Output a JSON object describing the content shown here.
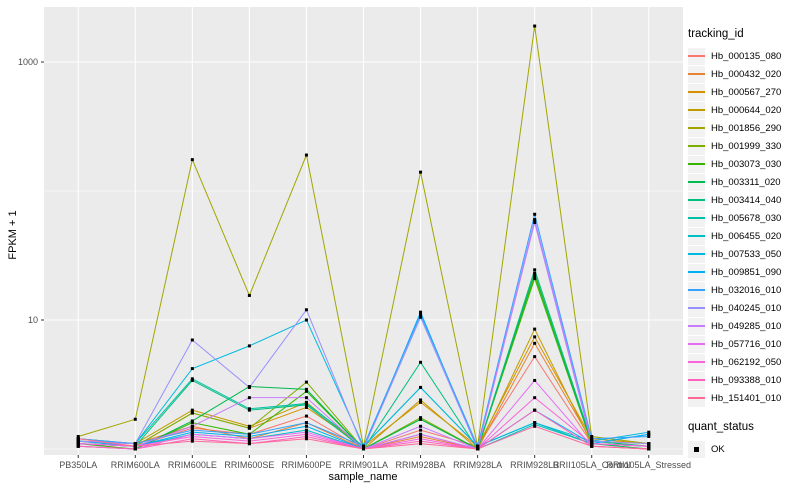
{
  "chart_data": {
    "type": "line",
    "title": "",
    "xlabel": "sample_name",
    "ylabel": "FPKM + 1",
    "yscale": "log10",
    "ylim": [
      0.9,
      2670
    ],
    "grid": true,
    "panel_bg": "#EBEBEB",
    "grid_color": "#FFFFFF",
    "tick_label_color": "#4D4D4D",
    "point_color": "#000000",
    "yticks": [
      {
        "value": 10,
        "label": "10"
      },
      {
        "value": 1000,
        "label": "1000"
      }
    ],
    "minor_y_gridlines": [
      1,
      100
    ],
    "categories": [
      "PB350LA",
      "RRIM600LA",
      "RRIM600LE",
      "RRIM600SE",
      "RRIM600PE",
      "RRIM901LA",
      "RRIM928BA",
      "RRIM928LA",
      "RRIM928LB",
      "RRII105LA_Control",
      "RRII105LA_Stressed"
    ],
    "legend": {
      "tracking_title": "tracking_id",
      "quant_title": "quant_status",
      "quant_items": [
        {
          "label": "OK",
          "marker": "black-square"
        }
      ],
      "position": "right"
    },
    "series": [
      {
        "name": "Hb_000135_080",
        "color": "#F8766D",
        "values": [
          1.15,
          1.05,
          1.45,
          1.3,
          1.8,
          1.0,
          1.4,
          1.05,
          5.2,
          1.1,
          1.05
        ]
      },
      {
        "name": "Hb_000432_020",
        "color": "#EA8331",
        "values": [
          1.2,
          1.1,
          1.5,
          1.2,
          1.6,
          1.0,
          1.25,
          1.0,
          6.6,
          1.15,
          1.1
        ]
      },
      {
        "name": "Hb_000567_270",
        "color": "#D89000",
        "values": [
          1.1,
          1.05,
          1.9,
          1.45,
          2.1,
          1.05,
          2.3,
          1.05,
          7.4,
          1.2,
          1.1
        ]
      },
      {
        "name": "Hb_000644_020",
        "color": "#C09B00",
        "values": [
          1.15,
          1.1,
          2.0,
          1.5,
          2.3,
          1.0,
          2.4,
          1.0,
          8.5,
          1.1,
          1.05
        ]
      },
      {
        "name": "Hb_001856_290",
        "color": "#A3A500",
        "values": [
          1.25,
          1.7,
          175,
          15.5,
          190,
          1.05,
          140,
          1.05,
          1900,
          1.25,
          1.1
        ]
      },
      {
        "name": "Hb_001999_330",
        "color": "#7CAE00",
        "values": [
          1.1,
          1.05,
          1.9,
          1.45,
          3.3,
          1.0,
          1.75,
          1.0,
          22,
          1.15,
          1.05
        ]
      },
      {
        "name": "Hb_003073_030",
        "color": "#39B600",
        "values": [
          1.1,
          1.0,
          1.6,
          1.3,
          2.8,
          1.0,
          1.7,
          1.0,
          21,
          1.1,
          1.05
        ]
      },
      {
        "name": "Hb_003311_020",
        "color": "#00BB4E",
        "values": [
          1.05,
          1.0,
          1.65,
          3.05,
          2.9,
          1.0,
          1.7,
          1.0,
          23,
          1.1,
          1.0
        ]
      },
      {
        "name": "Hb_003414_040",
        "color": "#00BF7D",
        "values": [
          1.1,
          1.05,
          3.4,
          2.0,
          2.2,
          1.0,
          4.7,
          1.0,
          24.5,
          1.15,
          1.05
        ]
      },
      {
        "name": "Hb_005678_030",
        "color": "#00C1A3",
        "values": [
          1.15,
          1.1,
          3.5,
          2.05,
          2.25,
          1.05,
          3.0,
          1.05,
          1.6,
          1.1,
          1.05
        ]
      },
      {
        "name": "Hb_006455_020",
        "color": "#00BFC4",
        "values": [
          1.1,
          1.05,
          1.3,
          1.2,
          1.4,
          1.0,
          1.3,
          1.0,
          1.55,
          1.1,
          1.3
        ]
      },
      {
        "name": "Hb_007533_050",
        "color": "#00BAE0",
        "values": [
          1.2,
          1.1,
          4.2,
          6.3,
          10.0,
          1.05,
          3.0,
          1.05,
          1.6,
          1.15,
          1.35
        ]
      },
      {
        "name": "Hb_009851_090",
        "color": "#00B0F6",
        "values": [
          1.15,
          1.05,
          1.35,
          1.25,
          1.5,
          1.0,
          11.5,
          1.0,
          2.0,
          1.1,
          1.3
        ]
      },
      {
        "name": "Hb_032016_010",
        "color": "#35A2FF",
        "values": [
          1.2,
          1.1,
          1.4,
          1.3,
          1.6,
          1.05,
          11.0,
          1.05,
          66,
          1.2,
          1.25
        ]
      },
      {
        "name": "Hb_040245_010",
        "color": "#9590FF",
        "values": [
          1.15,
          1.1,
          7.0,
          3.0,
          12.0,
          1.0,
          10.5,
          1.0,
          60,
          1.15,
          1.1
        ]
      },
      {
        "name": "Hb_049285_010",
        "color": "#C77CFF",
        "values": [
          1.1,
          1.05,
          1.5,
          2.5,
          2.5,
          1.0,
          1.5,
          1.0,
          57,
          1.1,
          1.05
        ]
      },
      {
        "name": "Hb_057716_010",
        "color": "#E76BF3",
        "values": [
          1.05,
          1.0,
          1.3,
          1.2,
          1.35,
          1.0,
          1.3,
          1.0,
          3.4,
          1.05,
          1.0
        ]
      },
      {
        "name": "Hb_062192_050",
        "color": "#FA62DB",
        "values": [
          1.1,
          1.05,
          1.25,
          1.15,
          1.3,
          1.0,
          1.2,
          1.0,
          2.5,
          1.1,
          1.05
        ]
      },
      {
        "name": "Hb_093388_010",
        "color": "#FF62BC",
        "values": [
          1.05,
          1.0,
          1.2,
          1.1,
          1.25,
          1.0,
          1.15,
          1.0,
          2.0,
          1.05,
          1.0
        ]
      },
      {
        "name": "Hb_151401_010",
        "color": "#FF6A98",
        "values": [
          1.2,
          1.05,
          1.15,
          1.1,
          1.2,
          1.0,
          1.1,
          1.0,
          1.5,
          1.05,
          1.0
        ]
      }
    ]
  }
}
